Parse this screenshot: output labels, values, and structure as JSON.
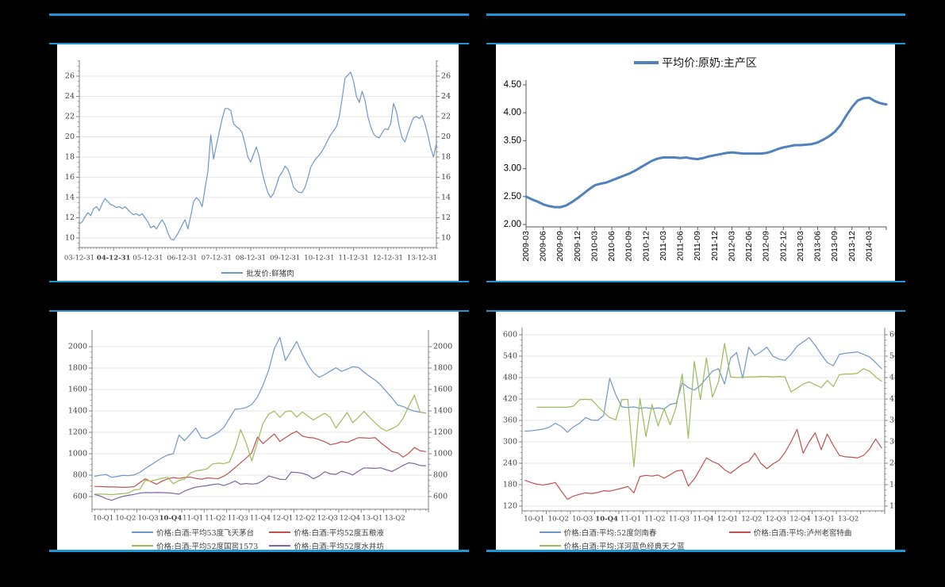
{
  "page": {
    "background": "#000000",
    "rule_color": "#1e96d7",
    "panel_background": "#ffffff"
  },
  "chart_data": [
    {
      "id": "pork-wholesale-price",
      "type": "line",
      "title": "",
      "legend": [
        {
          "label": "批发价:鲜猪肉",
          "color": "#6e97c9"
        }
      ],
      "legend_position": "bottom",
      "label_mode": "tick",
      "label_every": 12,
      "x_labels": [
        "03-12-31",
        "04-12-31",
        "05-12-31",
        "06-12-31",
        "07-12-31",
        "08-12-31",
        "09-12-31",
        "10-12-31",
        "11-12-31",
        "12-12-31",
        "13-12-31"
      ],
      "bold_x_labels": [
        "04-12-31"
      ],
      "y_ticks": [
        10,
        12,
        14,
        16,
        18,
        20,
        22,
        24,
        26
      ],
      "y_tick_labels": [
        "10",
        "12",
        "14",
        "16",
        "18",
        "20",
        "22",
        "24",
        "26"
      ],
      "y_minor_step": 0.5,
      "ylim": [
        9,
        27.5
      ],
      "dual_axis": true,
      "grid": true,
      "series": [
        {
          "name": "批发价:鲜猪肉",
          "color": "#6e97c9",
          "width": 1.2,
          "values": [
            11.4,
            11.6,
            12.1,
            12.5,
            12.2,
            12.9,
            13.1,
            12.7,
            13.4,
            13.9,
            13.6,
            13.3,
            13.2,
            13.0,
            13.1,
            12.9,
            13.1,
            12.8,
            12.5,
            12.3,
            12.4,
            12.2,
            12.4,
            12.0,
            11.6,
            11.0,
            11.2,
            10.9,
            11.4,
            11.8,
            11.3,
            10.5,
            9.9,
            9.8,
            10.2,
            10.7,
            11.3,
            11.8,
            10.9,
            12.2,
            13.6,
            14.0,
            13.7,
            13.1,
            14.9,
            16.6,
            20.2,
            17.8,
            19.2,
            20.5,
            21.8,
            22.8,
            22.8,
            22.6,
            21.3,
            21.0,
            20.8,
            20.4,
            19.3,
            18.0,
            17.5,
            18.3,
            19.0,
            18.0,
            16.5,
            15.4,
            14.5,
            14.0,
            14.4,
            15.2,
            16.1,
            16.5,
            17.1,
            16.8,
            16.0,
            15.0,
            14.7,
            14.5,
            14.5,
            15.0,
            15.9,
            17.0,
            17.5,
            17.9,
            18.2,
            18.6,
            19.1,
            19.7,
            20.2,
            20.6,
            21.0,
            22.0,
            23.8,
            25.8,
            26.1,
            26.4,
            25.5,
            24.0,
            23.4,
            24.5,
            23.6,
            22.0,
            21.0,
            20.3,
            20.0,
            19.9,
            20.4,
            20.8,
            20.7,
            21.3,
            23.3,
            22.5,
            21.0,
            19.9,
            19.5,
            20.4,
            21.2,
            21.9,
            22.0,
            21.8,
            22.1,
            21.3,
            20.2,
            18.9,
            18.0,
            19.4
          ]
        }
      ]
    },
    {
      "id": "raw-milk-average-price",
      "type": "line",
      "title": "",
      "legend": [
        {
          "label": "平均价:原奶:主产区",
          "color": "#4f81bd"
        }
      ],
      "legend_position": "top",
      "label_mode": "tick",
      "label_every": 3,
      "rotate_x_labels": true,
      "x_labels": [
        "2009-03",
        "2009-06",
        "2009-09",
        "2009-12",
        "2010-03",
        "2010-06",
        "2010-09",
        "2010-12",
        "2011-03",
        "2011-06",
        "2011-09",
        "2011-12",
        "2012-03",
        "2012-06",
        "2012-09",
        "2012-12",
        "2013-03",
        "2013-06",
        "2013-09",
        "2013-12",
        "2014-03"
      ],
      "bold_x_labels": [],
      "y_ticks": [
        2.0,
        2.5,
        3.0,
        3.5,
        4.0,
        4.5
      ],
      "y_tick_labels": [
        "2.00",
        "2.50",
        "3.00",
        "3.50",
        "4.00",
        "4.50"
      ],
      "y_minor_step": 0,
      "ylim": [
        2.0,
        4.5
      ],
      "dual_axis": false,
      "grid": false,
      "series": [
        {
          "name": "平均价:原奶:主产区",
          "color": "#4f81bd",
          "width": 3,
          "values": [
            2.5,
            2.45,
            2.41,
            2.36,
            2.33,
            2.31,
            2.31,
            2.34,
            2.4,
            2.47,
            2.55,
            2.63,
            2.7,
            2.73,
            2.75,
            2.79,
            2.83,
            2.87,
            2.91,
            2.96,
            3.02,
            3.08,
            3.14,
            3.18,
            3.2,
            3.2,
            3.2,
            3.19,
            3.2,
            3.18,
            3.17,
            3.19,
            3.22,
            3.24,
            3.26,
            3.28,
            3.29,
            3.28,
            3.27,
            3.27,
            3.27,
            3.27,
            3.28,
            3.31,
            3.35,
            3.38,
            3.4,
            3.42,
            3.42,
            3.43,
            3.44,
            3.47,
            3.52,
            3.58,
            3.66,
            3.78,
            3.95,
            4.1,
            4.22,
            4.26,
            4.27,
            4.21,
            4.17,
            4.15
          ]
        }
      ]
    },
    {
      "id": "baijiu-premium-prices",
      "type": "line",
      "title": "",
      "legend": [
        {
          "label": "价格:白酒:平均53度飞天茅台",
          "color": "#6e97c9"
        },
        {
          "label": "价格:白酒:平均52度五粮液",
          "color": "#c0504d"
        },
        {
          "label": "价格:白酒:平均52度国窖1573",
          "color": "#9bbb59"
        },
        {
          "label": "价格:白酒:平均52度水井坊",
          "color": "#8064a2"
        }
      ],
      "legend_position": "bottom-grid",
      "label_mode": "group",
      "group_size": 4,
      "x_labels": [
        "10-Q1",
        "10-Q2",
        "10-Q3",
        "10-Q4",
        "11-Q1",
        "11-Q2",
        "11-Q3",
        "11-Q4",
        "12-Q1",
        "12-Q2",
        "12-Q3",
        "12-Q4",
        "13-Q1",
        "13-Q2"
      ],
      "bold_x_labels": [
        "10-Q4"
      ],
      "y_ticks": [
        600,
        800,
        1000,
        1200,
        1400,
        1600,
        1800,
        2000
      ],
      "y_tick_labels": [
        "600",
        "800",
        "1000",
        "1200",
        "1400",
        "1600",
        "1800",
        "2000"
      ],
      "y_minor_step": 50,
      "ylim": [
        600,
        2000
      ],
      "dual_axis": true,
      "grid": true,
      "series": [
        {
          "name": "价格:白酒:平均53度飞天茅台",
          "color": "#6e97c9",
          "width": 1.2,
          "values": [
            790,
            800,
            806,
            780,
            788,
            798,
            795,
            802,
            825,
            862,
            895,
            930,
            962,
            988,
            1000,
            1175,
            1122,
            1180,
            1240,
            1150,
            1142,
            1170,
            1200,
            1245,
            1330,
            1415,
            1420,
            1432,
            1460,
            1530,
            1640,
            1780,
            1980,
            2085,
            1870,
            1960,
            2048,
            1930,
            1830,
            1756,
            1713,
            1740,
            1772,
            1803,
            1769,
            1790,
            1813,
            1806,
            1763,
            1722,
            1688,
            1640,
            1580,
            1520,
            1455,
            1440,
            1415,
            1398,
            1388,
            1380
          ]
        },
        {
          "name": "价格:白酒:平均52度五粮液",
          "color": "#c0504d",
          "width": 1.2,
          "values": [
            695,
            693,
            691,
            690,
            689,
            686,
            688,
            692,
            730,
            766,
            740,
            715,
            745,
            765,
            778,
            770,
            778,
            782,
            770,
            762,
            774,
            770,
            768,
            790,
            825,
            870,
            915,
            960,
            1010,
            1155,
            1095,
            1140,
            1185,
            1115,
            1150,
            1185,
            1210,
            1165,
            1152,
            1148,
            1132,
            1112,
            1085,
            1095,
            1112,
            1105,
            1128,
            1150,
            1148,
            1145,
            1150,
            1102,
            1062,
            1020,
            1008,
            968,
            1005,
            1058,
            1028,
            1020
          ]
        },
        {
          "name": "价格:白酒:平均52度国窖1573",
          "color": "#9bbb59",
          "width": 1.2,
          "values": [
            622,
            623,
            621,
            618,
            623,
            628,
            634,
            662,
            668,
            752,
            745,
            758,
            772,
            780,
            720,
            750,
            762,
            818,
            840,
            848,
            858,
            905,
            912,
            908,
            922,
            1048,
            1225,
            1100,
            932,
            1110,
            1285,
            1370,
            1398,
            1340,
            1392,
            1400,
            1342,
            1390,
            1352,
            1315,
            1348,
            1378,
            1340,
            1240,
            1312,
            1385,
            1290,
            1338,
            1395,
            1340,
            1288,
            1240,
            1212,
            1235,
            1262,
            1332,
            1445,
            1545,
            1390,
            1378
          ]
        },
        {
          "name": "价格:白酒:平均52度水井坊",
          "color": "#8064a2",
          "width": 1.2,
          "values": [
            618,
            605,
            580,
            565,
            585,
            602,
            612,
            620,
            632,
            638,
            636,
            638,
            637,
            635,
            630,
            622,
            652,
            672,
            688,
            696,
            702,
            712,
            718,
            702,
            722,
            745,
            715,
            722,
            716,
            722,
            750,
            792,
            778,
            762,
            758,
            828,
            825,
            818,
            800,
            766,
            792,
            832,
            812,
            808,
            836,
            822,
            802,
            838,
            868,
            866,
            864,
            868,
            850,
            835,
            862,
            892,
            915,
            908,
            890,
            888
          ]
        }
      ]
    },
    {
      "id": "baijiu-midrange-prices",
      "type": "line",
      "title": "",
      "legend": [
        {
          "label": "价格:白酒:平均:52度剑南春",
          "color": "#6e97c9"
        },
        {
          "label": "价格:白酒:平均:泸州老窖特曲",
          "color": "#c0504d"
        },
        {
          "label": "价格:白酒:平均:洋河蓝色经典天之蓝",
          "color": "#9bbb59"
        }
      ],
      "legend_position": "bottom-grid",
      "label_mode": "group",
      "group_size": 4,
      "x_labels": [
        "10-Q1",
        "10-Q2",
        "10-Q3",
        "10-Q4",
        "11-Q1",
        "11-Q2",
        "11-Q3",
        "11-Q4",
        "12-Q1",
        "12-Q2",
        "12-Q3",
        "12-Q4",
        "13-Q1",
        "13-Q2"
      ],
      "bold_x_labels": [
        "10-Q4"
      ],
      "y_ticks": [
        120,
        180,
        240,
        300,
        360,
        420,
        480,
        540,
        600
      ],
      "y_tick_labels": [
        "120",
        "180",
        "240",
        "300",
        "360",
        "420",
        "480",
        "540",
        "600"
      ],
      "y_minor_step": 15,
      "ylim": [
        120,
        600
      ],
      "dual_axis": true,
      "grid": true,
      "series": [
        {
          "name": "价格:白酒:平均:52度剑南春",
          "color": "#6e97c9",
          "width": 1.2,
          "values": [
            330,
            331,
            333,
            336,
            341,
            352,
            343,
            327,
            342,
            352,
            368,
            361,
            360,
            374,
            478,
            432,
            398,
            396,
            398,
            394,
            396,
            393,
            395,
            392,
            405,
            408,
            465,
            452,
            445,
            458,
            478,
            498,
            505,
            462,
            535,
            550,
            478,
            565,
            542,
            552,
            565,
            540,
            532,
            528,
            545,
            568,
            580,
            592,
            570,
            545,
            522,
            513,
            545,
            548,
            550,
            552,
            545,
            538,
            522,
            505
          ]
        },
        {
          "name": "价格:白酒:平均:泸州老窖特曲",
          "color": "#c0504d",
          "width": 1.2,
          "values": [
            192,
            186,
            181,
            179,
            182,
            186,
            162,
            139,
            148,
            153,
            157,
            155,
            158,
            163,
            162,
            166,
            170,
            175,
            157,
            203,
            206,
            204,
            207,
            198,
            208,
            218,
            221,
            176,
            196,
            225,
            255,
            245,
            238,
            222,
            212,
            225,
            238,
            245,
            268,
            240,
            225,
            238,
            248,
            270,
            300,
            335,
            268,
            300,
            325,
            278,
            322,
            290,
            262,
            258,
            257,
            255,
            262,
            280,
            308,
            283
          ]
        },
        {
          "name": "价格:白酒:平均:洋河蓝色经典天之蓝",
          "color": "#9bbb59",
          "width": 1.2,
          "values": [
            null,
            null,
            397,
            397,
            397,
            397,
            397,
            397,
            400,
            418,
            419,
            418,
            400,
            383,
            368,
            362,
            418,
            419,
            230,
            421,
            315,
            405,
            345,
            392,
            348,
            398,
            490,
            310,
            525,
            418,
            535,
            425,
            468,
            575,
            482,
            480,
            481,
            482,
            482,
            483,
            483,
            482,
            483,
            482,
            440,
            450,
            462,
            468,
            460,
            452,
            472,
            455,
            488,
            490,
            490,
            492,
            505,
            498,
            482,
            470
          ]
        }
      ]
    }
  ]
}
